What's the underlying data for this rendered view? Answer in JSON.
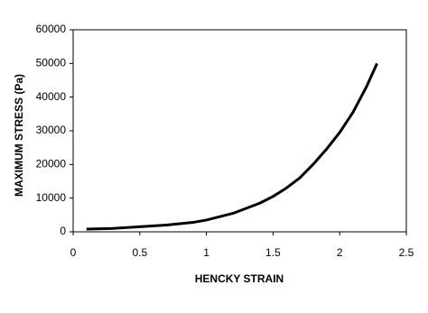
{
  "chart_data": {
    "type": "line",
    "x_label": "HENCKY STRAIN",
    "y_label": "MAXIMUM STRESS (Pa)",
    "x": [
      0.1,
      0.3,
      0.5,
      0.7,
      0.9,
      1.0,
      1.1,
      1.2,
      1.3,
      1.4,
      1.5,
      1.6,
      1.7,
      1.8,
      1.9,
      2.0,
      2.1,
      2.2,
      2.28
    ],
    "series": [
      {
        "color": "#000000",
        "values": [
          800,
          1000,
          1500,
          2000,
          2800,
          3500,
          4500,
          5500,
          7000,
          8500,
          10500,
          13000,
          16000,
          20000,
          24500,
          29500,
          35500,
          43000,
          50000
        ]
      }
    ],
    "xlim": [
      0,
      2.5
    ],
    "xticks": [
      0,
      0.5,
      1,
      1.5,
      2,
      2.5
    ],
    "ylim": [
      0,
      60000
    ],
    "yticks": [
      0,
      10000,
      20000,
      30000,
      40000,
      50000,
      60000
    ],
    "grid": false
  }
}
